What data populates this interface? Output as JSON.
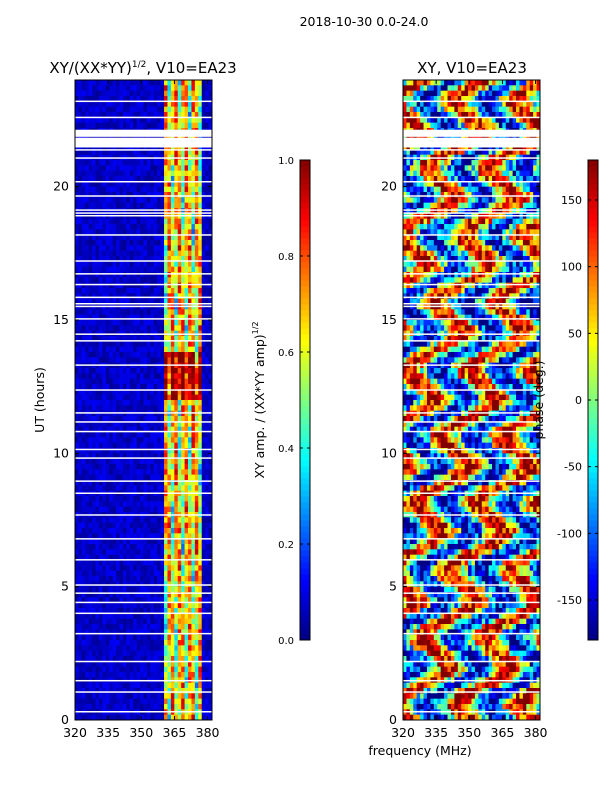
{
  "figure": {
    "suptitle": "2018-10-30 0.0-24.0",
    "xlabel": "frequency (MHz)"
  },
  "chart_data": [
    {
      "type": "heatmap",
      "title_main": "XY/(XX*YY)",
      "title_exp": "1/2",
      "title_rest": ", V10=EA23",
      "xlabel": "",
      "ylabel": "UT (hours)",
      "x_range": [
        320,
        382
      ],
      "y_range": [
        0,
        24
      ],
      "x_ticks": [
        320,
        335,
        350,
        365,
        380
      ],
      "y_ticks": [
        0,
        5,
        10,
        15,
        20
      ],
      "colorbar": {
        "label_main": "XY amp. / (XX*YY amp)",
        "label_exp": "1/2",
        "range": [
          0.0,
          1.0
        ],
        "ticks": [
          "0.0",
          "0.2",
          "0.4",
          "0.6",
          "0.8",
          "1.0"
        ],
        "colormap": "jet"
      }
    },
    {
      "type": "heatmap",
      "title_main": "XY, V10=EA23",
      "xlabel": "frequency (MHz)",
      "ylabel": "",
      "x_range": [
        320,
        382
      ],
      "y_range": [
        0,
        24
      ],
      "x_ticks": [
        320,
        335,
        350,
        365,
        380
      ],
      "y_ticks": [
        0,
        5,
        10,
        15,
        20
      ],
      "colorbar": {
        "label_main": "phase (deg.)",
        "range": [
          -180,
          180
        ],
        "ticks": [
          "-150",
          "-100",
          "-50",
          "0",
          "50",
          "100",
          "150"
        ],
        "colormap": "jet"
      }
    }
  ],
  "colors": {
    "jet_low": "#00007f",
    "jet_high": "#7f0000",
    "gap": "#ffffff"
  }
}
